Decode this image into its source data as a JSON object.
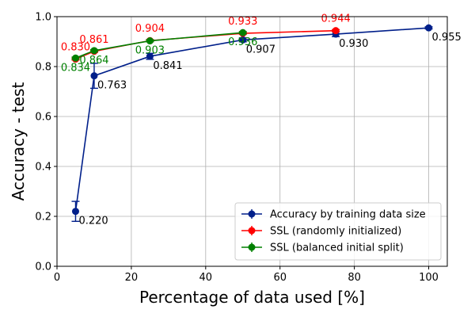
{
  "chart_data": {
    "type": "line",
    "xlabel": "Percentage of data used [%]",
    "ylabel": "Accuracy - test",
    "xlim": [
      0,
      105
    ],
    "ylim": [
      0.0,
      1.0
    ],
    "xticks": [
      0,
      20,
      40,
      60,
      80,
      100
    ],
    "yticks": [
      0.0,
      0.2,
      0.4,
      0.6,
      0.8,
      1.0
    ],
    "grid": true,
    "legend_position": "lower-right",
    "series": [
      {
        "name": "Accuracy by training data size",
        "color": "#001f8a",
        "marker": "circle",
        "error_bars": true,
        "x": [
          5,
          10,
          25,
          50,
          75,
          100
        ],
        "y": [
          0.22,
          0.763,
          0.841,
          0.907,
          0.93,
          0.955
        ],
        "yerr": [
          0.04,
          0.05,
          0.012,
          0.008,
          0.01,
          0.004
        ],
        "labels": [
          "0.220",
          "0.763",
          "0.841",
          "0.907",
          "0.930",
          "0.955"
        ]
      },
      {
        "name": "SSL (randomly initialized)",
        "color": "#ff0000",
        "marker": "circle",
        "error_bars": true,
        "x": [
          5,
          10,
          25,
          50,
          75
        ],
        "y": [
          0.83,
          0.861,
          0.904,
          0.933,
          0.944
        ],
        "yerr": [
          0.004,
          0.004,
          0.004,
          0.004,
          0.004
        ],
        "labels": [
          "0.830",
          "0.861",
          "0.904",
          "0.933",
          "0.944"
        ]
      },
      {
        "name": "SSL (balanced initial split)",
        "color": "#008000",
        "marker": "circle",
        "error_bars": true,
        "x": [
          5,
          10,
          25,
          50
        ],
        "y": [
          0.834,
          0.864,
          0.903,
          0.936
        ],
        "yerr": [
          0.004,
          0.004,
          0.004,
          0.004
        ],
        "labels": [
          "0.834",
          "0.864",
          "0.903",
          "0.936"
        ]
      }
    ]
  }
}
